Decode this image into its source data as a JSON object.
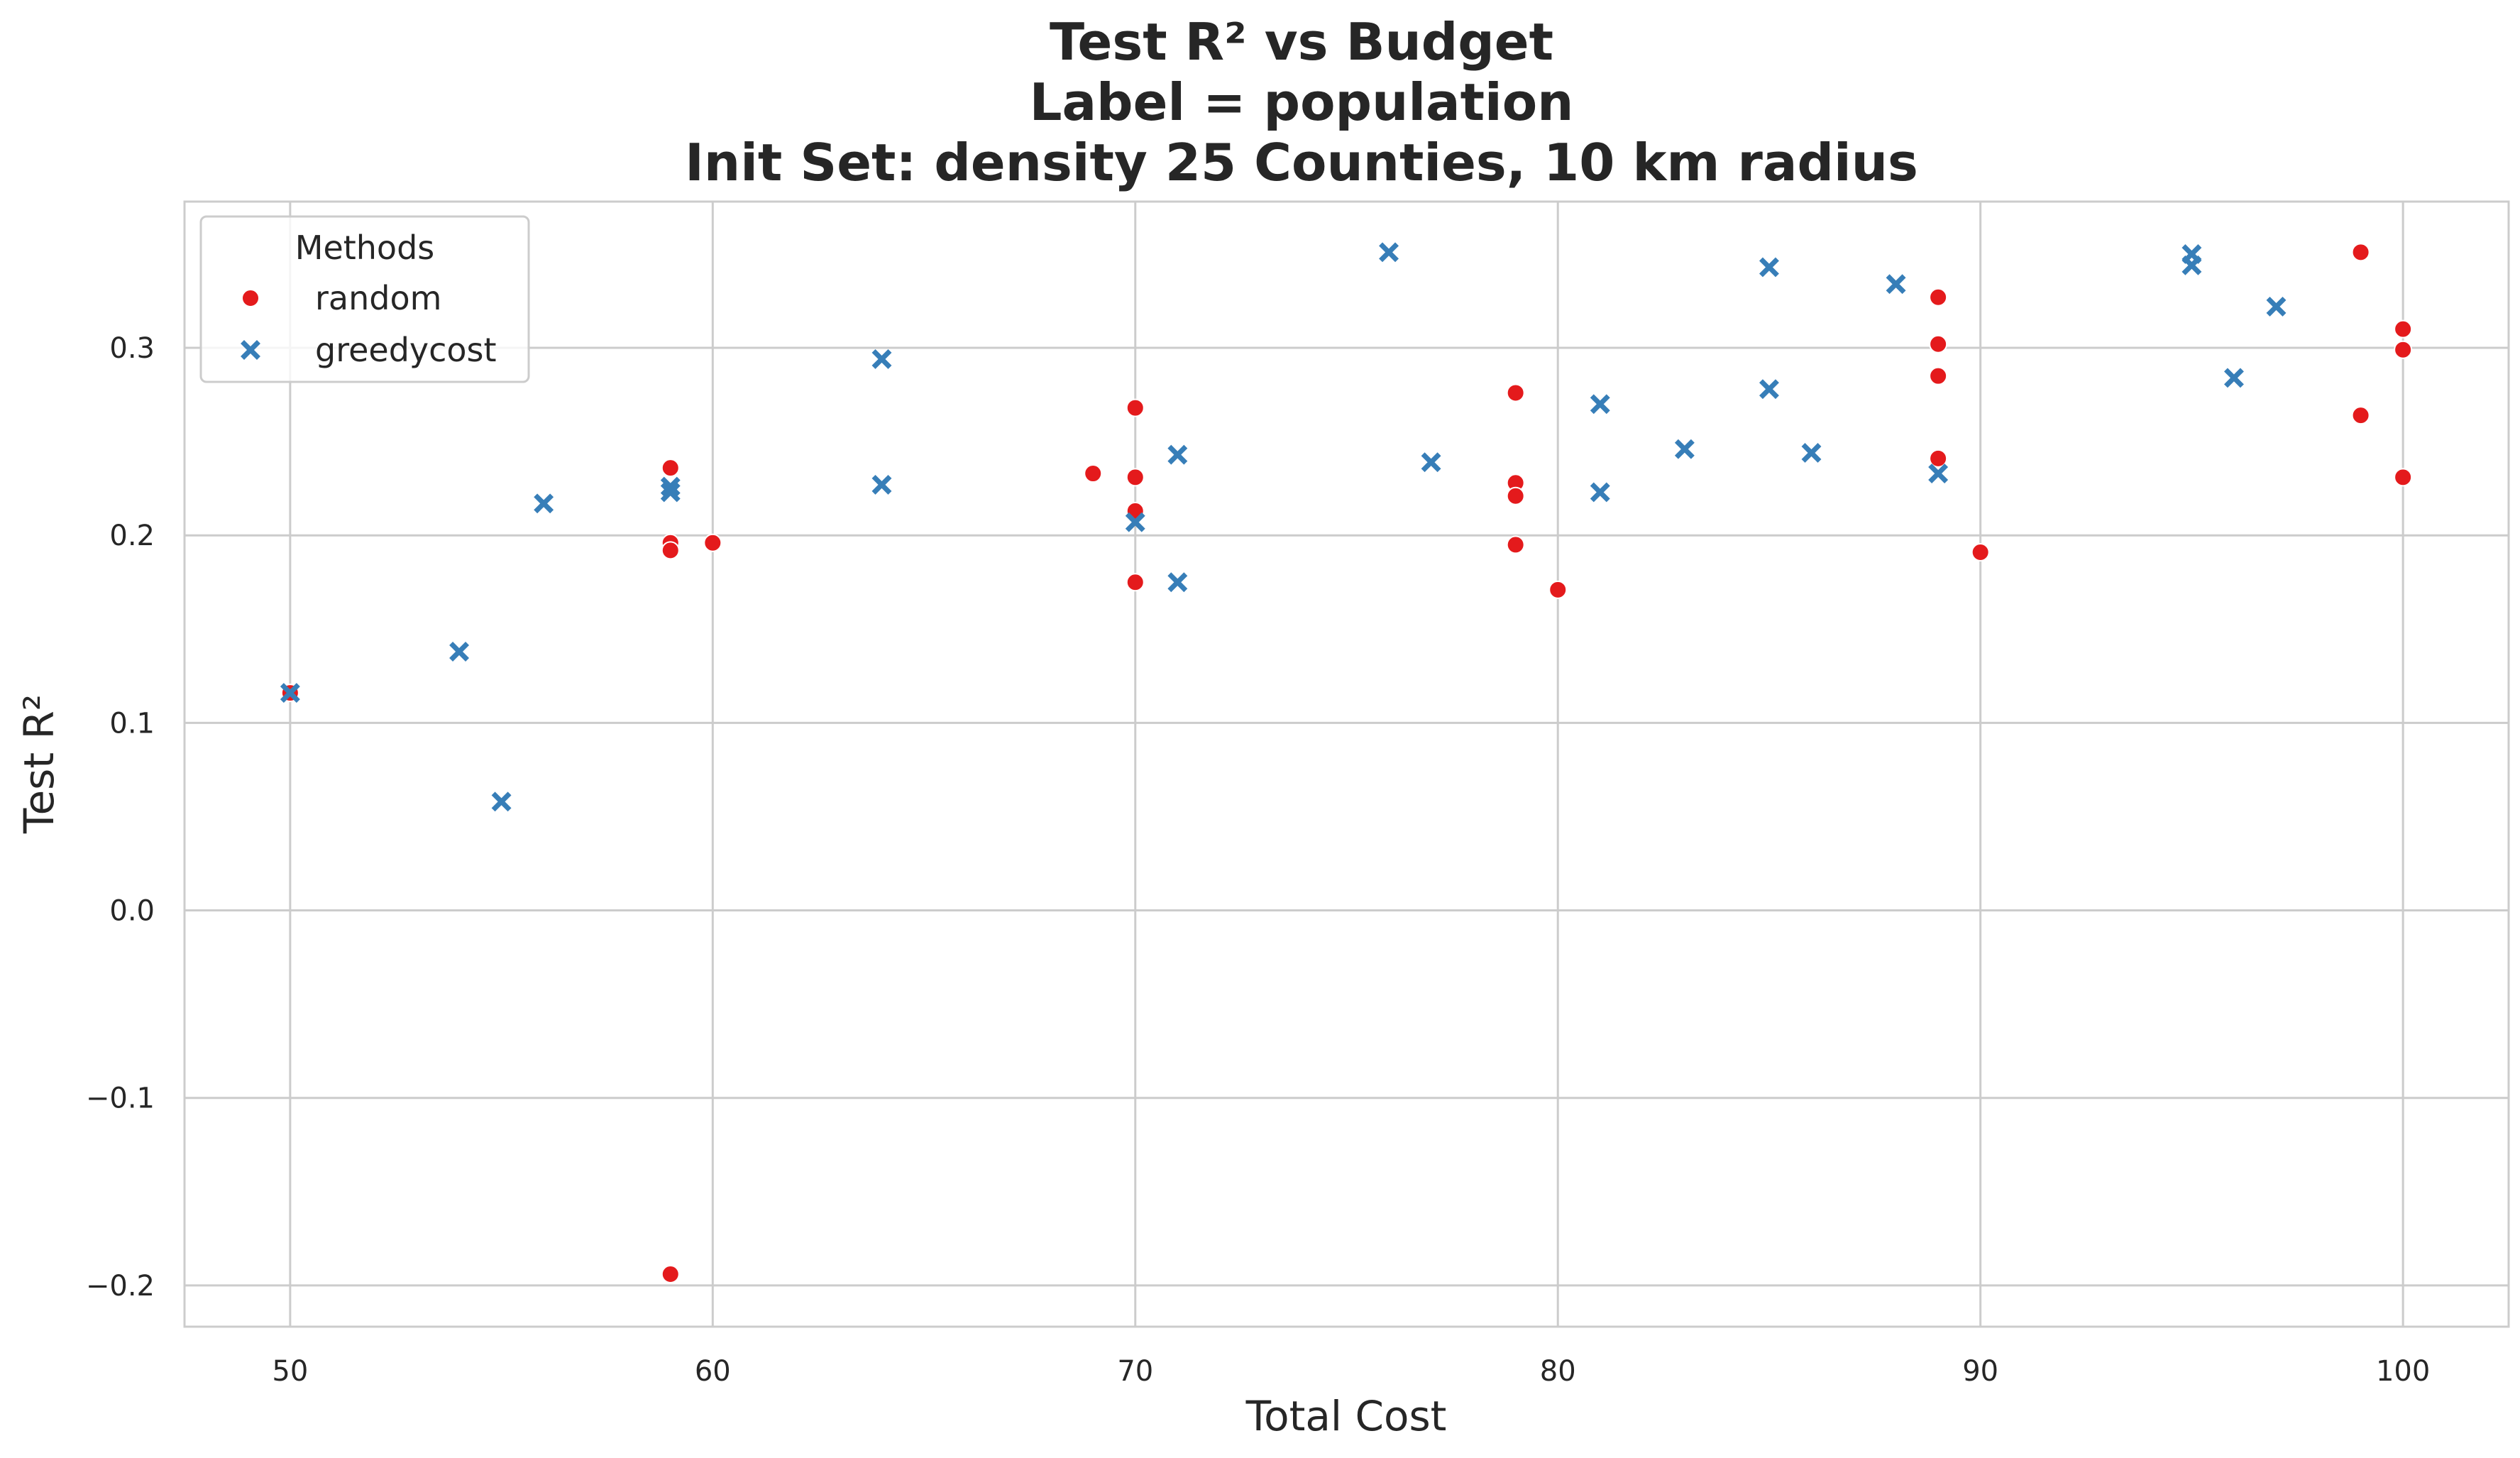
{
  "chart_data": {
    "type": "scatter",
    "title_lines": [
      "Test R² vs Budget",
      "Label = population",
      "Init Set: density 25 Counties, 10 km radius"
    ],
    "xlabel": "Total Cost",
    "ylabel": "Test R²",
    "xlim": [
      47.5,
      102.5
    ],
    "ylim": [
      -0.222,
      0.378
    ],
    "x_ticks": [
      50,
      60,
      70,
      80,
      90,
      100
    ],
    "x_tick_labels": [
      "50",
      "60",
      "70",
      "80",
      "90",
      "100"
    ],
    "y_ticks": [
      -0.2,
      -0.1,
      0.0,
      0.1,
      0.2,
      0.3
    ],
    "y_tick_labels": [
      "−0.2",
      "−0.1",
      "0.0",
      "0.1",
      "0.2",
      "0.3"
    ],
    "grid": true,
    "legend": {
      "title": "Methods",
      "placement": "top-left"
    },
    "series": [
      {
        "name": "random",
        "marker": "circle",
        "color": "#e41a1c",
        "points": [
          [
            50,
            0.116
          ],
          [
            59,
            0.236
          ],
          [
            59,
            0.196
          ],
          [
            59,
            0.192
          ],
          [
            59,
            -0.194
          ],
          [
            60,
            0.196
          ],
          [
            69,
            0.233
          ],
          [
            70,
            0.268
          ],
          [
            70,
            0.231
          ],
          [
            70,
            0.213
          ],
          [
            70,
            0.175
          ],
          [
            79,
            0.276
          ],
          [
            79,
            0.228
          ],
          [
            79,
            0.221
          ],
          [
            79,
            0.195
          ],
          [
            80,
            0.171
          ],
          [
            89,
            0.327
          ],
          [
            89,
            0.302
          ],
          [
            89,
            0.285
          ],
          [
            89,
            0.241
          ],
          [
            90,
            0.191
          ],
          [
            99,
            0.351
          ],
          [
            99,
            0.264
          ],
          [
            100,
            0.31
          ],
          [
            100,
            0.299
          ],
          [
            100,
            0.231
          ]
        ]
      },
      {
        "name": "greedycost",
        "marker": "x",
        "color": "#377eb8",
        "points": [
          [
            50,
            0.116
          ],
          [
            54,
            0.138
          ],
          [
            55,
            0.058
          ],
          [
            56,
            0.217
          ],
          [
            59,
            0.226
          ],
          [
            59,
            0.223
          ],
          [
            64,
            0.294
          ],
          [
            64,
            0.227
          ],
          [
            70,
            0.207
          ],
          [
            71,
            0.243
          ],
          [
            71,
            0.175
          ],
          [
            76,
            0.351
          ],
          [
            77,
            0.239
          ],
          [
            81,
            0.27
          ],
          [
            81,
            0.223
          ],
          [
            83,
            0.246
          ],
          [
            85,
            0.343
          ],
          [
            85,
            0.278
          ],
          [
            86,
            0.244
          ],
          [
            88,
            0.334
          ],
          [
            89,
            0.233
          ],
          [
            95,
            0.35
          ],
          [
            95,
            0.344
          ],
          [
            96,
            0.284
          ],
          [
            97,
            0.322
          ]
        ]
      }
    ]
  }
}
